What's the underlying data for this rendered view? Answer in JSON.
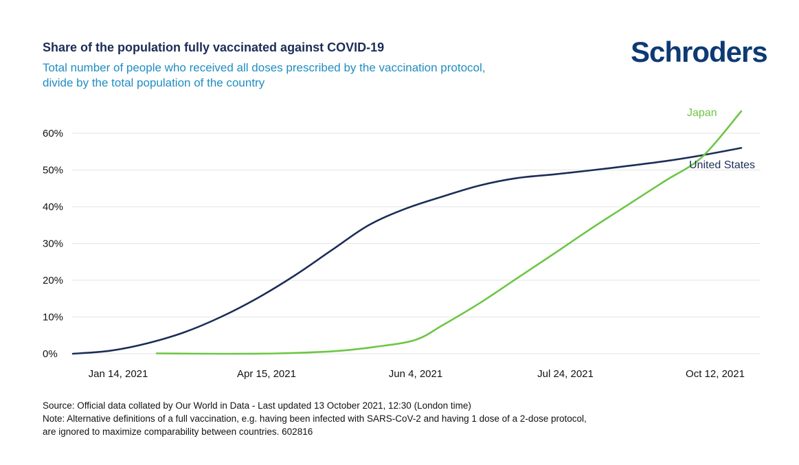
{
  "header": {
    "title": "Share of the population fully vaccinated against COVID-19",
    "subtitle_line1": "Total number of people who received all doses prescribed by the vaccination protocol,",
    "subtitle_line2": "divide by the total population of the country",
    "logo_text": "Schroders"
  },
  "footer": {
    "source": "Source: Official data collated by Our World in Data - Last updated 13 October 2021, 12:30 (London time)",
    "note_line1": "Note: Alternative definitions of a full vaccination, e.g. having been infected with SARS-CoV-2 and having 1 dose of a 2-dose protocol,",
    "note_line2": "are ignored to maximize comparability between countries. 602816"
  },
  "colors": {
    "united_states": "#1b2d57",
    "japan": "#6cc644",
    "title": "#1b2d57",
    "subtitle": "#1f8dc0",
    "grid": "#e3e3e3"
  },
  "chart_data": {
    "type": "line",
    "title": "Share of the population fully vaccinated against COVID-19",
    "xlabel": "",
    "ylabel": "",
    "x_ticks": [
      "Jan 14, 2021",
      "Apr 15, 2021",
      "Jun 4, 2021",
      "Jul 24, 2021",
      "Oct 12, 2021"
    ],
    "y_ticks": [
      "0%",
      "10%",
      "20%",
      "30%",
      "40%",
      "50%",
      "60%"
    ],
    "ylim": [
      0,
      66
    ],
    "grid": "horizontal",
    "series": [
      {
        "name": "United States",
        "color": "#1b2d57",
        "x": [
          "2021-01-14",
          "2021-01-29",
          "2021-02-13",
          "2021-02-28",
          "2021-03-15",
          "2021-03-30",
          "2021-04-14",
          "2021-04-29",
          "2021-05-14",
          "2021-05-29",
          "2021-06-13",
          "2021-06-28",
          "2021-07-13",
          "2021-07-28",
          "2021-08-12",
          "2021-08-27",
          "2021-09-11",
          "2021-09-26",
          "2021-10-12"
        ],
        "values": [
          0,
          0.8,
          2.8,
          5.8,
          10,
          15.2,
          21.3,
          28.2,
          35,
          39.5,
          42.8,
          45.8,
          47.8,
          48.8,
          49.9,
          51.1,
          52.4,
          54,
          56
        ]
      },
      {
        "name": "Japan",
        "color": "#6cc644",
        "x": [
          "2021-02-17",
          "2021-03-15",
          "2021-04-07",
          "2021-04-30",
          "2021-05-17",
          "2021-06-02",
          "2021-06-13",
          "2021-06-28",
          "2021-07-13",
          "2021-07-28",
          "2021-08-12",
          "2021-08-27",
          "2021-09-11",
          "2021-09-26",
          "2021-10-12"
        ],
        "values": [
          0.1,
          0,
          0.1,
          0.7,
          1.9,
          3.8,
          7.8,
          13.8,
          20.5,
          27.2,
          34,
          40.5,
          47,
          53.5,
          66
        ]
      }
    ]
  }
}
